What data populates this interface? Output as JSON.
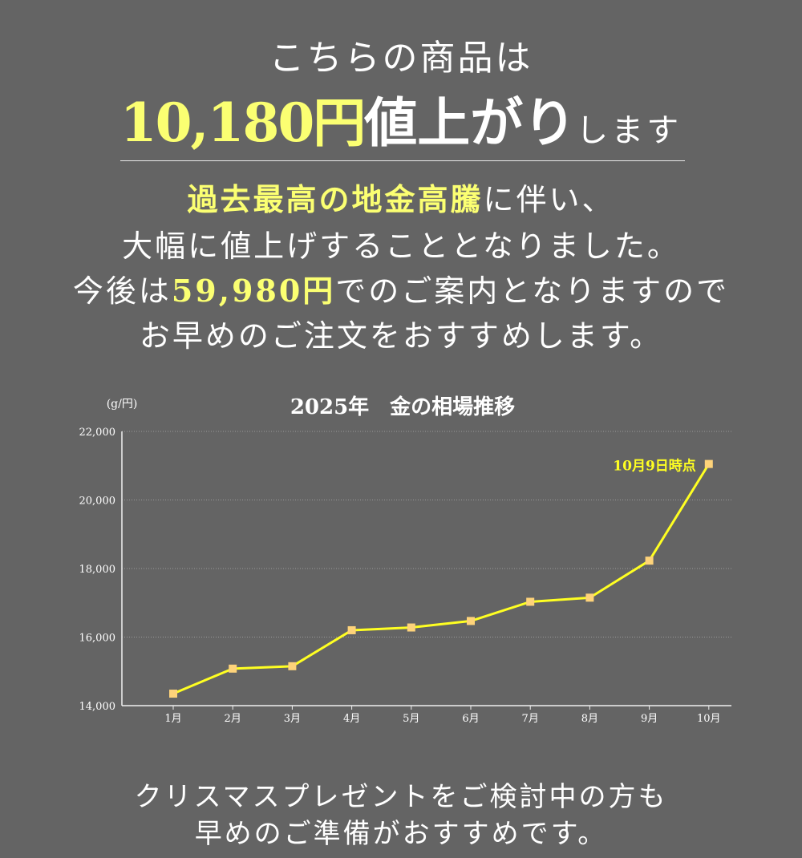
{
  "headline": {
    "line1": "こちらの商品は",
    "amount": "10,180円",
    "phrase": "値上がり",
    "suffix": "します"
  },
  "message": {
    "line1_highlight": "過去最高の地金高騰",
    "line1_rest": "に伴い、",
    "line2": "大幅に値上げすることとなりました。",
    "line3_prefix": "今後は",
    "line3_price": "59,980円",
    "line3_rest": "でのご案内となりますので",
    "line4": "お早めのご注文をおすすめします。"
  },
  "chart_data": {
    "type": "line",
    "title": "2025年　金の相場推移",
    "unit_label": "(g/円)",
    "categories": [
      "1月",
      "2月",
      "3月",
      "4月",
      "5月",
      "6月",
      "7月",
      "8月",
      "9月",
      "10月"
    ],
    "series": [
      {
        "values": [
          14350,
          15080,
          15150,
          16200,
          16280,
          16470,
          17030,
          17150,
          18230,
          21050
        ]
      }
    ],
    "ylim": [
      14000,
      22000
    ],
    "yticks": [
      14000,
      16000,
      18000,
      20000,
      22000
    ],
    "ytick_labels": [
      "14,000",
      "16,000",
      "18,000",
      "20,000",
      "22,000"
    ],
    "grid": true,
    "annotation": {
      "text": "10月9日時点",
      "category": "10月"
    },
    "colors": {
      "line": "#ffff22",
      "marker": "#fed37a",
      "annotation": "#ffff22",
      "axis": "#f0f0f0",
      "grid": "#9a9a9a"
    }
  },
  "closing": {
    "line1": "クリスマスプレゼントをご検討中の方も",
    "line2": "早めのご準備がおすすめです。"
  }
}
